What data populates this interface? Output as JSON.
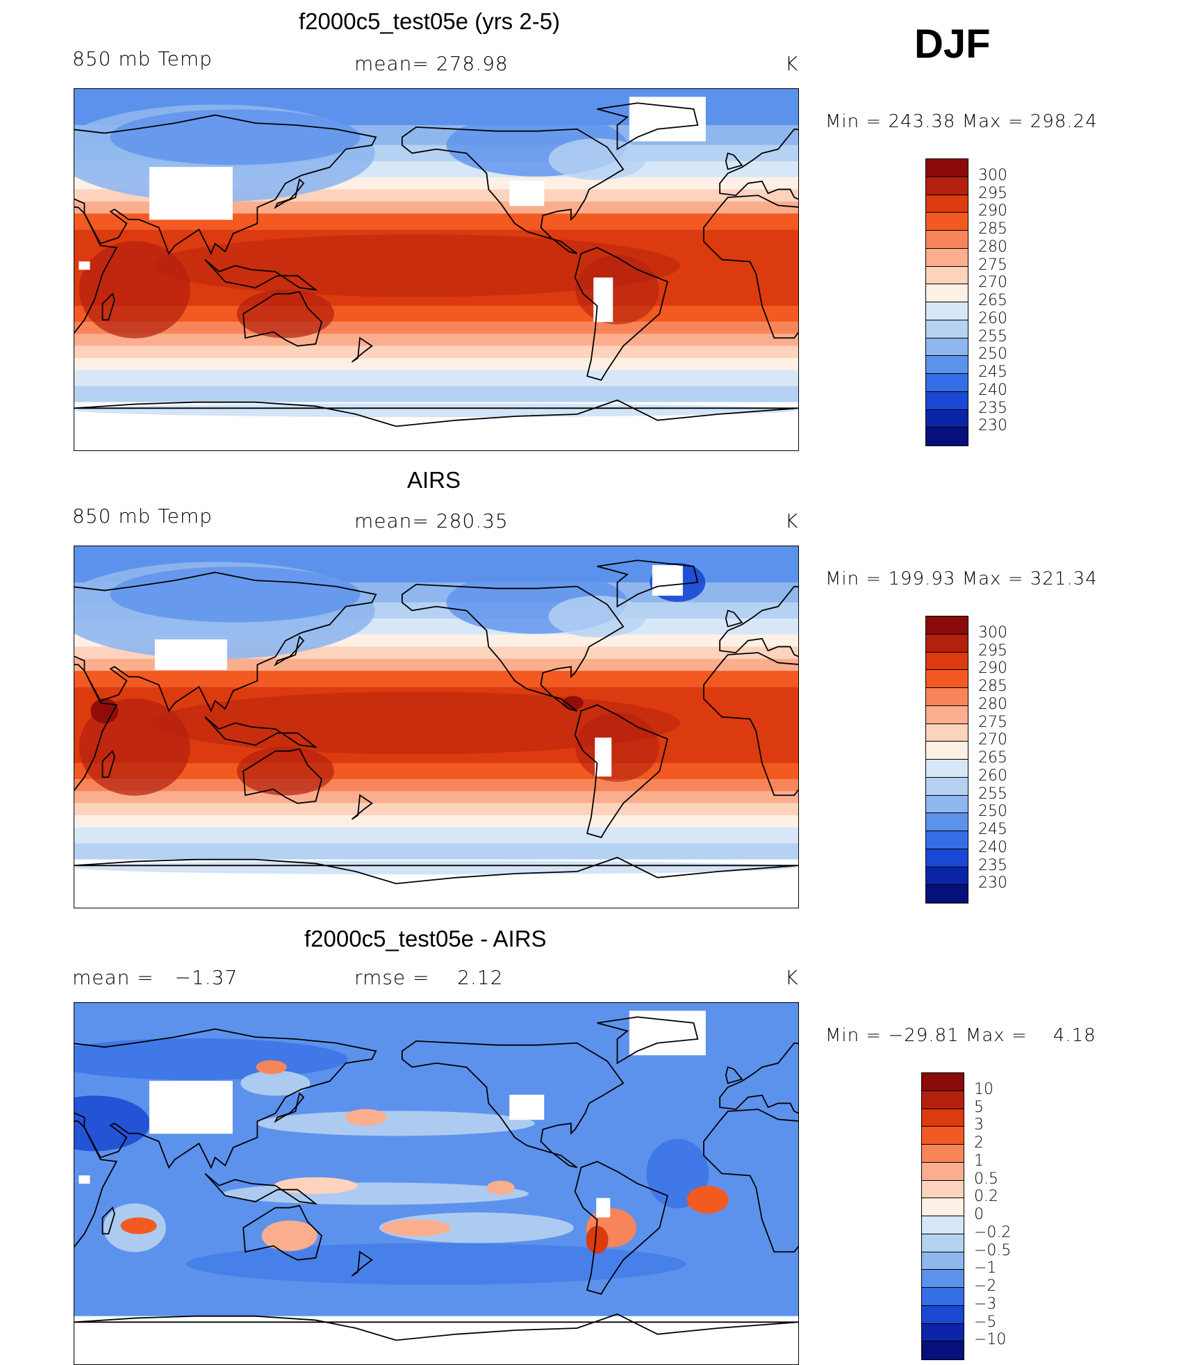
{
  "season": "DJF",
  "panels": [
    {
      "title": "f2000c5_test05e (yrs 2-5)",
      "left_label": "850 mb Temp",
      "center_label": "mean= 278.98",
      "units": "K",
      "minmax": "Min = 243.38 Max = 298.24",
      "palette": "temp",
      "map_kind": "model"
    },
    {
      "title": "AIRS",
      "left_label": "850 mb Temp",
      "center_label": "mean= 280.35",
      "units": "K",
      "minmax": "Min = 199.93 Max = 321.34",
      "palette": "temp",
      "map_kind": "obs"
    },
    {
      "title": "f2000c5_test05e - AIRS",
      "left_label": "mean =   −1.37",
      "center_label": "rmse =    2.12",
      "units": "K",
      "minmax": "Min = −29.81 Max =    4.18",
      "palette": "diff",
      "map_kind": "diff"
    }
  ],
  "chart_data": [
    {
      "type": "heatmap",
      "title": "f2000c5_test05e (yrs 2-5)",
      "variable": "850 mb Temp",
      "units": "K",
      "mean": 278.98,
      "min": 243.38,
      "max": 298.24,
      "levels": [
        300,
        295,
        290,
        285,
        280,
        275,
        270,
        265,
        260,
        255,
        250,
        245,
        240,
        235,
        230
      ]
    },
    {
      "type": "heatmap",
      "title": "AIRS",
      "variable": "850 mb Temp",
      "units": "K",
      "mean": 280.35,
      "min": 199.93,
      "max": 321.34,
      "levels": [
        300,
        295,
        290,
        285,
        280,
        275,
        270,
        265,
        260,
        255,
        250,
        245,
        240,
        235,
        230
      ]
    },
    {
      "type": "heatmap",
      "title": "f2000c5_test05e - AIRS",
      "units": "K",
      "mean": -1.37,
      "rmse": 2.12,
      "min": -29.81,
      "max": 4.18,
      "levels": [
        "10",
        "5",
        "3",
        "2",
        "1",
        "0.5",
        "0.2",
        "0",
        "−0.2",
        "−0.5",
        "−1",
        "−2",
        "−3",
        "−5",
        "−10"
      ]
    }
  ],
  "palettes": {
    "temp": [
      "#8b0a0a",
      "#b3200e",
      "#dc3a0f",
      "#f25a22",
      "#f8855a",
      "#fbae8e",
      "#fdd3bd",
      "#fef0e4",
      "#d8e7f7",
      "#b6d2f2",
      "#8fb7ee",
      "#5d92ec",
      "#346ee6",
      "#1a48d2",
      "#0c24a8",
      "#06107a"
    ],
    "diff": [
      "#8b0a0a",
      "#b3200e",
      "#dc3a0f",
      "#f25a22",
      "#f8855a",
      "#fbae8e",
      "#fdd3bd",
      "#fef0e4",
      "#d8e7f7",
      "#b6d2f2",
      "#8fb7ee",
      "#5d92ec",
      "#346ee6",
      "#1a48d2",
      "#0c24a8",
      "#06107a"
    ]
  }
}
